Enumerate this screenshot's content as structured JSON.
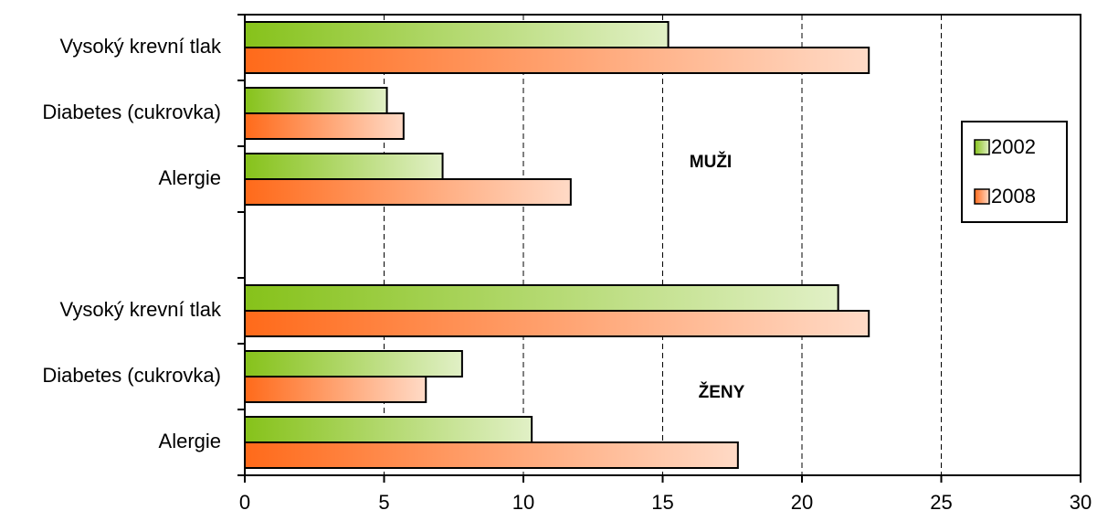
{
  "chart_data": {
    "type": "barh",
    "categories": [
      "Vysoký krevní tlak",
      "Diabetes (cukrovka)",
      "Alergie",
      null,
      "Vysoký krevní tlak",
      "Diabetes (cukrovka)",
      "Alergie"
    ],
    "series": [
      {
        "name": "2002",
        "color": "#86c21a",
        "values": [
          15.2,
          5.1,
          7.1,
          null,
          21.3,
          7.8,
          10.3
        ]
      },
      {
        "name": "2008",
        "color": "#ff6a1a",
        "values": [
          22.4,
          5.7,
          11.7,
          null,
          22.4,
          6.5,
          17.7
        ]
      }
    ],
    "annotations": [
      "MUŽI",
      "ŽENY"
    ],
    "xlim": [
      0,
      30
    ],
    "xticks": [
      0,
      5,
      10,
      15,
      20,
      25,
      30
    ],
    "grid": true,
    "legend": "right"
  }
}
